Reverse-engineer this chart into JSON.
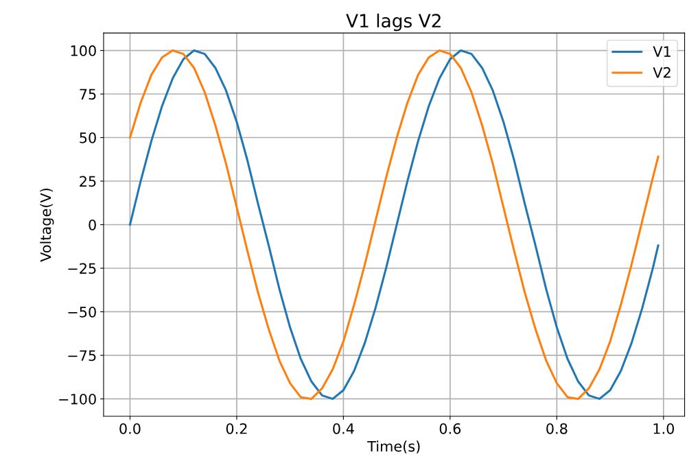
{
  "chart_data": {
    "type": "line",
    "title": "V1 lags V2",
    "xlabel": "Time(s)",
    "ylabel": "Voltage(V)",
    "x": [
      0,
      0.02,
      0.04,
      0.06,
      0.08,
      0.1,
      0.12,
      0.14,
      0.16,
      0.18,
      0.2,
      0.22,
      0.24,
      0.26,
      0.28,
      0.3,
      0.32,
      0.34,
      0.36,
      0.38,
      0.4,
      0.42,
      0.44,
      0.46,
      0.48,
      0.5,
      0.52,
      0.54,
      0.56,
      0.58,
      0.6,
      0.62,
      0.64,
      0.66,
      0.68,
      0.7,
      0.72,
      0.74,
      0.76,
      0.78,
      0.8,
      0.82,
      0.84,
      0.86,
      0.88,
      0.9,
      0.92,
      0.94,
      0.96,
      0.98,
      0.99
    ],
    "series": [
      {
        "name": "V1",
        "color": "#1f77b4",
        "values": [
          0,
          25,
          48,
          68,
          84,
          95,
          100,
          98,
          90,
          77,
          59,
          37,
          12,
          -12,
          -37,
          -59,
          -77,
          -90,
          -98,
          -100,
          -95,
          -84,
          -68,
          -48,
          -25,
          0,
          25,
          48,
          68,
          84,
          95,
          100,
          98,
          90,
          77,
          59,
          37,
          12,
          -12,
          -37,
          -59,
          -77,
          -90,
          -98,
          -100,
          -95,
          -84,
          -68,
          -48,
          -25,
          -12
        ]
      },
      {
        "name": "V2",
        "color": "#ff7f0e",
        "values": [
          50,
          70,
          86,
          96,
          100,
          98,
          90,
          76,
          57,
          35,
          10,
          -15,
          -39,
          -60,
          -78,
          -91,
          -99,
          -100,
          -94,
          -83,
          -67,
          -46,
          -23,
          2,
          27,
          50,
          70,
          86,
          96,
          100,
          98,
          90,
          76,
          57,
          35,
          10,
          -15,
          -39,
          -60,
          -78,
          -91,
          -99,
          -100,
          -94,
          -83,
          -67,
          -46,
          -23,
          2,
          27,
          39
        ]
      }
    ],
    "xlim": [
      -0.0495,
      1.0395
    ],
    "xticks": [
      {
        "value": 0,
        "label": "0.0"
      },
      0.2,
      0.4,
      0.6,
      0.8,
      {
        "value": 1,
        "label": "1.0"
      }
    ],
    "ylim": [
      -110,
      110
    ],
    "yticks": [
      {
        "value": -100,
        "label": "−100"
      },
      {
        "value": -75,
        "label": "−75"
      },
      {
        "value": -50,
        "label": "−50"
      },
      {
        "value": -25,
        "label": "−25"
      },
      0,
      25,
      50,
      75,
      100
    ],
    "grid": true,
    "legend": "top right",
    "line_style": "solid"
  }
}
